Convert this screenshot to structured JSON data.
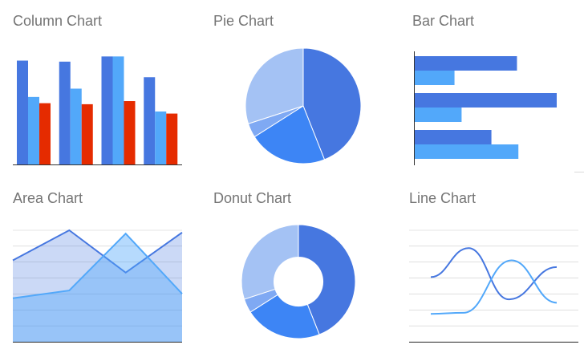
{
  "palette": {
    "dark_blue": "#4677e0",
    "mid_blue": "#3d85f5",
    "light_blue": "#52a8fa",
    "pale_blue": "#a4c2f4",
    "pale_blue_2": "#7fa9f3",
    "red": "#e52b00",
    "axis": "#333333",
    "grid": "#cccccc",
    "title": "#757575"
  },
  "tiles": {
    "column": {
      "title": "Column Chart",
      "chart_data": {
        "type": "bar",
        "orientation": "vertical",
        "groups": 4,
        "series": [
          {
            "values": [
              100,
              99,
              104,
              84
            ],
            "color": "#4677e0"
          },
          {
            "values": [
              65,
              73,
              104,
              51
            ],
            "color": "#52a8fa"
          },
          {
            "values": [
              59,
              58,
              61,
              49
            ],
            "color": "#e52b00"
          }
        ],
        "ylim": [
          0,
          112
        ],
        "grid": false
      }
    },
    "pie": {
      "title": "Pie Chart",
      "chart_data": {
        "type": "pie",
        "values": [
          44,
          22,
          4,
          30
        ],
        "colors": [
          "#4677e0",
          "#3d85f5",
          "#7fa9f3",
          "#a4c2f4"
        ]
      }
    },
    "bar": {
      "title": "Bar Chart",
      "chart_data": {
        "type": "bar",
        "orientation": "horizontal",
        "groups": 3,
        "series": [
          {
            "values": [
              72,
              100,
              54
            ],
            "color": "#4677e0"
          },
          {
            "values": [
              28,
              33,
              73
            ],
            "color": "#52a8fa"
          }
        ],
        "xlim": [
          0,
          100
        ],
        "grid": false
      }
    },
    "area": {
      "title": "Area Chart",
      "chart_data": {
        "type": "area",
        "x": [
          0,
          1,
          2,
          3
        ],
        "series": [
          {
            "values": [
              73,
              100,
              62,
              98
            ],
            "color": "#4677e0"
          },
          {
            "values": [
              39,
              46,
              97,
              43
            ],
            "color": "#52a8fa"
          }
        ],
        "ylim": [
          0,
          100
        ],
        "grid": true
      }
    },
    "donut": {
      "title": "Donut Chart",
      "chart_data": {
        "type": "pie",
        "hole": 0.43,
        "values": [
          44,
          22,
          4,
          30
        ],
        "colors": [
          "#4677e0",
          "#3d85f5",
          "#7fa9f3",
          "#a4c2f4"
        ]
      }
    },
    "line": {
      "title": "Line Chart",
      "chart_data": {
        "type": "line",
        "series": [
          {
            "points": [
              [
                0,
                58
              ],
              [
                0.3,
                84
              ],
              [
                0.62,
                38
              ],
              [
                1,
                67
              ]
            ],
            "color": "#4677e0"
          },
          {
            "points": [
              [
                0,
                25
              ],
              [
                0.26,
                26
              ],
              [
                0.64,
                73
              ],
              [
                1,
                35
              ]
            ],
            "color": "#52a8fa"
          }
        ],
        "xlim": [
          0,
          1
        ],
        "ylim": [
          0,
          100
        ],
        "grid": true
      }
    }
  }
}
